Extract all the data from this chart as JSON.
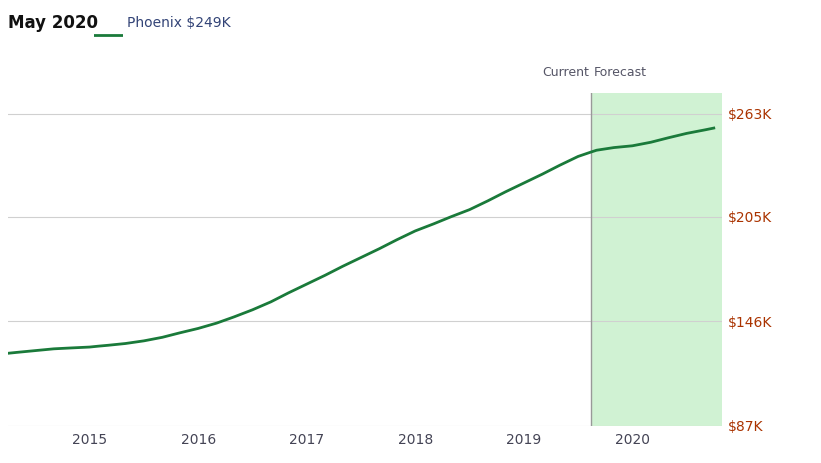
{
  "title": "May 2020",
  "legend_label": "Phoenix $249K",
  "line_color": "#1a7a3a",
  "forecast_fill_color": "#c8f0cc",
  "forecast_fill_alpha": 0.85,
  "divider_color": "#999999",
  "current_label": "Current",
  "forecast_label": "Forecast",
  "yticks": [
    87000,
    146000,
    205000,
    263000
  ],
  "ytick_labels": [
    "$87K",
    "$146K",
    "$205K",
    "$263K"
  ],
  "ylim": [
    87000,
    275000
  ],
  "xlim_start": 2014.25,
  "xlim_end": 2020.83,
  "forecast_start": 2019.62,
  "xtick_labels": [
    "2015",
    "2016",
    "2017",
    "2018",
    "2019",
    "2020"
  ],
  "xtick_positions": [
    2015,
    2016,
    2017,
    2018,
    2019,
    2020
  ],
  "grid_color": "#d0d0d0",
  "background_color": "#ffffff",
  "title_color": "#111111",
  "label_color": "#444455",
  "current_forecast_label_color": "#555566",
  "ytick_label_color": "#aa3300",
  "legend_line_color": "#1a7a3a",
  "legend_text_color": "#334477",
  "data_x": [
    2014.25,
    2014.33,
    2014.5,
    2014.67,
    2014.83,
    2015.0,
    2015.08,
    2015.17,
    2015.33,
    2015.5,
    2015.67,
    2015.83,
    2016.0,
    2016.17,
    2016.33,
    2016.5,
    2016.67,
    2016.83,
    2017.0,
    2017.17,
    2017.33,
    2017.5,
    2017.67,
    2017.83,
    2018.0,
    2018.17,
    2018.33,
    2018.5,
    2018.67,
    2018.83,
    2019.0,
    2019.17,
    2019.33,
    2019.5,
    2019.62,
    2019.67,
    2019.83,
    2020.0,
    2020.17,
    2020.33,
    2020.5,
    2020.67,
    2020.75
  ],
  "data_y": [
    128000,
    128500,
    129500,
    130500,
    131000,
    131500,
    132000,
    132500,
    133500,
    135000,
    137000,
    139500,
    142000,
    145000,
    148500,
    152500,
    157000,
    162000,
    167000,
    172000,
    177000,
    182000,
    187000,
    192000,
    197000,
    201000,
    205000,
    209000,
    214000,
    219000,
    224000,
    229000,
    234000,
    239000,
    241500,
    242500,
    244000,
    245000,
    247000,
    249500,
    252000,
    254000,
    255000
  ]
}
